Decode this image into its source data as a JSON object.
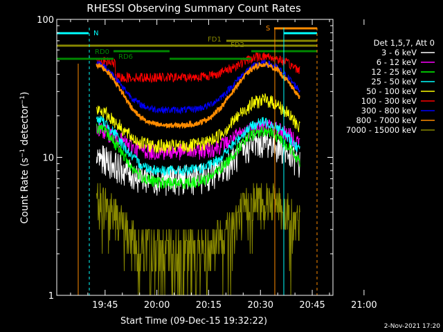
{
  "chart_data": {
    "type": "line",
    "title": "RHESSI Observing Summary Count Rates",
    "xlabel": "Start Time (09-Dec-15 19:32:22)",
    "ylabel_main": "Count Rate (s",
    "ylabel_sup1": "−1",
    "ylabel_mid": " detector",
    "ylabel_sup2": "−1",
    "ylabel_end": ")",
    "y_scale": "log",
    "ylim": [
      1,
      100
    ],
    "y_ticks": [
      "1",
      "10",
      "100"
    ],
    "xlim_minutes": [
      -14,
      66
    ],
    "x_ticks": [
      {
        "label": "19:45",
        "minute": 0
      },
      {
        "label": "20:00",
        "minute": 15
      },
      {
        "label": "20:15",
        "minute": 30
      },
      {
        "label": "20:30",
        "minute": 45
      },
      {
        "label": "20:45",
        "minute": 60
      },
      {
        "label": "21:00",
        "minute": 75
      }
    ],
    "legend_header": "Det 1,5,7, Att 0",
    "legend_position": "right",
    "timestamp": "2-Nov-2021 17:20",
    "series": [
      {
        "name": "3 - 6 keV",
        "color": "#ffffff"
      },
      {
        "name": "6 - 12 keV",
        "color": "#ff00ff"
      },
      {
        "name": "12 - 25 keV",
        "color": "#00ff00"
      },
      {
        "name": "25 - 50 keV",
        "color": "#00ffff"
      },
      {
        "name": "50 - 100 keV",
        "color": "#ffff00"
      },
      {
        "name": "100 - 300 keV",
        "color": "#ff0000"
      },
      {
        "name": "300 - 800 keV",
        "color": "#0000ff"
      },
      {
        "name": "800 - 7000 keV",
        "color": "#ff8c00"
      },
      {
        "name": "7000 - 15000 keV",
        "color": "#888800"
      }
    ],
    "annotations": [
      {
        "label": "N",
        "color": "#00ffff"
      },
      {
        "label": "S",
        "color": "#ff8c00"
      },
      {
        "label": "FD1",
        "color": "#888800"
      },
      {
        "label": "FD2",
        "color": "#888800"
      },
      {
        "label": "RD0",
        "color": "#008800"
      },
      {
        "label": "RD6",
        "color": "#008800"
      }
    ]
  }
}
